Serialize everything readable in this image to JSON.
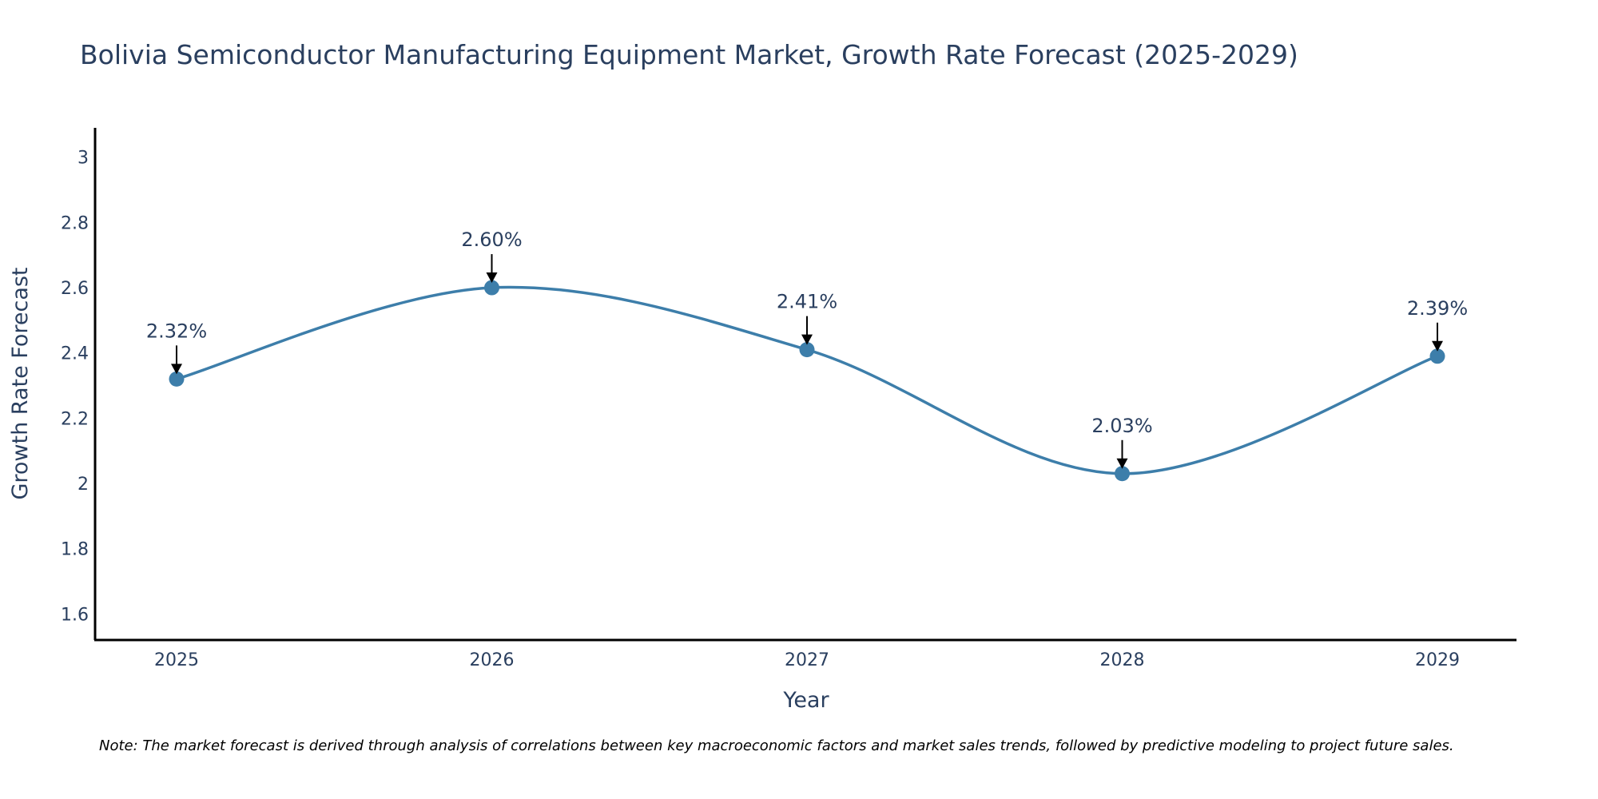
{
  "chart_data": {
    "type": "line",
    "title": "Bolivia Semiconductor Manufacturing Equipment Market, Growth Rate Forecast (2025-2029)",
    "xlabel": "Year",
    "ylabel": "Growth Rate Forecast",
    "categories": [
      "2025",
      "2026",
      "2027",
      "2028",
      "2029"
    ],
    "values": [
      2.32,
      2.6,
      2.41,
      2.03,
      2.39
    ],
    "annotations": [
      "2.32%",
      "2.60%",
      "2.41%",
      "2.03%",
      "2.39%"
    ],
    "yticks": [
      1.6,
      1.8,
      2,
      2.2,
      2.4,
      2.6,
      2.8,
      3
    ],
    "ytick_labels": [
      "1.6",
      "1.8",
      "2",
      "2.2",
      "2.4",
      "2.6",
      "2.8",
      "3"
    ],
    "ylim": [
      1.52,
      3.09
    ],
    "line_shape": "spline",
    "grid": false,
    "line_color": "#3d7eaa",
    "marker_color": "#3d7eaa",
    "arrow_color": "#000000",
    "text_color": "#2a3f5f"
  },
  "note": "Note: The market forecast is derived through analysis of correlations between key macroeconomic factors and market sales trends, followed by predictive modeling to project future sales."
}
